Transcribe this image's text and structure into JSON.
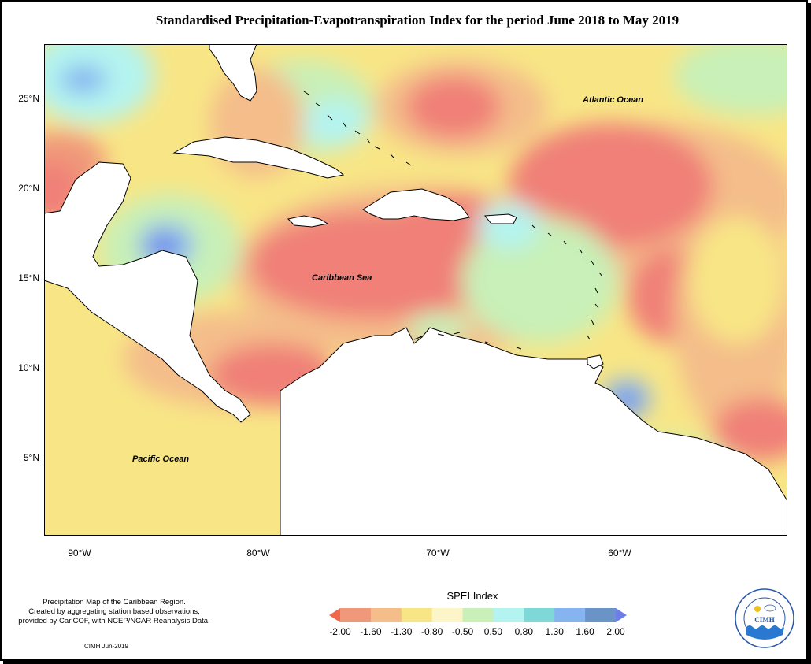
{
  "title": "Standardised Precipitation-Evapotranspiration Index for the period June 2018 to May 2019",
  "map": {
    "y_axis_labels": [
      "25°N",
      "20°N",
      "15°N",
      "10°N",
      "5°N"
    ],
    "x_axis_labels": [
      "90°W",
      "80°W",
      "70°W",
      "60°W"
    ],
    "region_labels": {
      "atlantic": "Atlantic Ocean",
      "caribbean": "Caribbean Sea",
      "pacific": "Pacific Ocean"
    }
  },
  "notes": {
    "line1": "Precipitation Map of the Caribbean Region.",
    "line2": "Created by aggregating station based observations,",
    "line3": "provided by CariCOF, with NCEP/NCAR Reanalysis Data.",
    "credit": "CIMH Jun-2019"
  },
  "legend": {
    "title": "SPEI Index",
    "ticks": [
      "-2.00",
      "-1.60",
      "-1.30",
      "-0.80",
      "-0.50",
      "0.50",
      "0.80",
      "1.30",
      "1.60",
      "2.00"
    ],
    "colors": [
      "#f0684a",
      "#f0997a",
      "#f4bd8a",
      "#f8e686",
      "#fbf5c8",
      "#c8f0b8",
      "#b4f4f0",
      "#7ed8d8",
      "#86b4f0",
      "#6a94c8",
      "#6e7ee8"
    ]
  },
  "logo": {
    "text": "CIMH",
    "ring_text": "Caribbean Institute for Meteorology and Hydrology"
  }
}
